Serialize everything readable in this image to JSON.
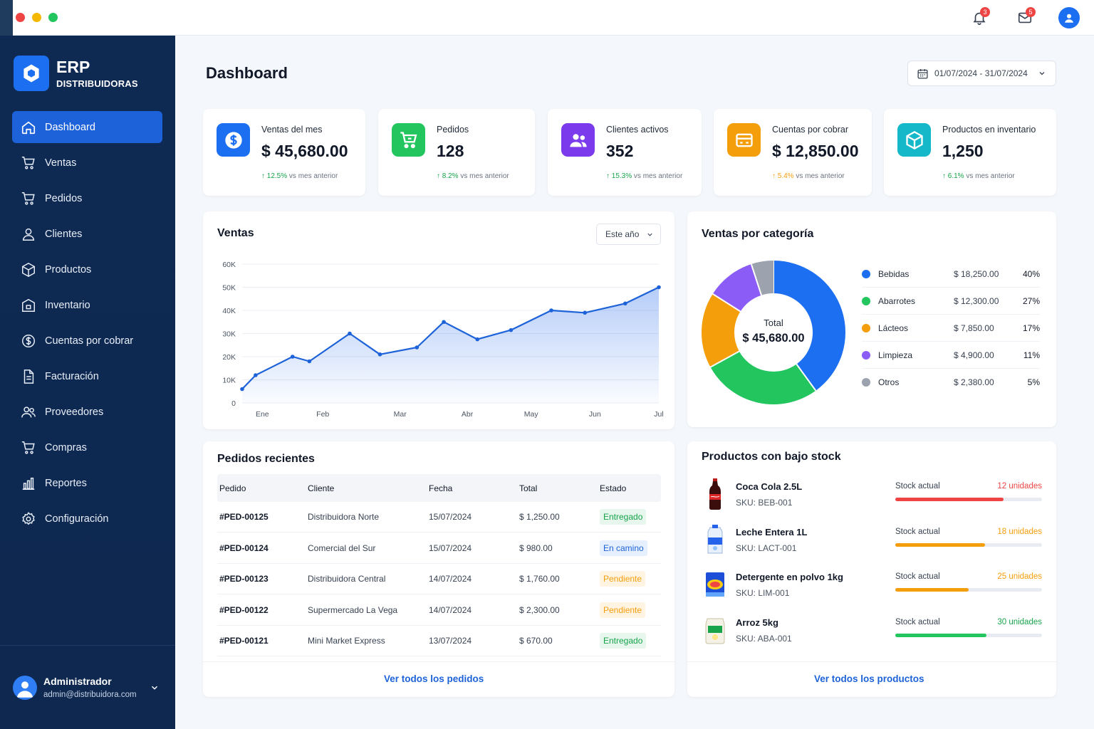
{
  "titlebar": {
    "notifications_badge": "3",
    "messages_badge": "5"
  },
  "brand": {
    "title": "ERP",
    "subtitle": "DISTRIBUIDORAS"
  },
  "sidebar": {
    "items": [
      {
        "label": "Dashboard",
        "icon": "home-icon",
        "active": true
      },
      {
        "label": "Ventas",
        "icon": "cart-icon"
      },
      {
        "label": "Pedidos",
        "icon": "cart-icon"
      },
      {
        "label": "Clientes",
        "icon": "user-icon"
      },
      {
        "label": "Productos",
        "icon": "box-icon"
      },
      {
        "label": "Inventario",
        "icon": "warehouse-icon"
      },
      {
        "label": "Cuentas por cobrar",
        "icon": "dollar-icon"
      },
      {
        "label": "Facturación",
        "icon": "document-icon"
      },
      {
        "label": "Proveedores",
        "icon": "users-icon"
      },
      {
        "label": "Compras",
        "icon": "cart-icon"
      },
      {
        "label": "Reportes",
        "icon": "bar-chart-icon"
      },
      {
        "label": "Configuración",
        "icon": "gear-icon"
      }
    ]
  },
  "user": {
    "name": "Administrador",
    "email": "admin@distribuidora.com"
  },
  "header": {
    "title": "Dashboard",
    "date_range": "01/07/2024 - 31/07/2024"
  },
  "kpis": [
    {
      "label": "Ventas del mes",
      "value": "$ 45,680.00",
      "trend": "12.5%",
      "trend_text": "vs mes anterior",
      "color": "#1d6ff2",
      "trend_color": "#16a34a",
      "icon": "dollar-icon"
    },
    {
      "label": "Pedidos",
      "value": "128",
      "trend": "8.2%",
      "trend_text": "vs mes anterior",
      "color": "#22c55e",
      "trend_color": "#16a34a",
      "icon": "cart-icon"
    },
    {
      "label": "Clientes activos",
      "value": "352",
      "trend": "15.3%",
      "trend_text": "vs mes anterior",
      "color": "#7c3aed",
      "trend_color": "#16a34a",
      "icon": "users-icon"
    },
    {
      "label": "Cuentas por cobrar",
      "value": "$ 12,850.00",
      "trend": "5.4%",
      "trend_text": "vs mes anterior",
      "color": "#f59e0b",
      "trend_color": "#f59e0b",
      "icon": "credit-card-icon"
    },
    {
      "label": "Productos en inventario",
      "value": "1,250",
      "trend": "6.1%",
      "trend_text": "vs mes anterior",
      "color": "#14b8c8",
      "trend_color": "#16a34a",
      "icon": "box-icon"
    }
  ],
  "sales": {
    "title": "Ventas",
    "period": "Este año"
  },
  "chart_data": [
    {
      "type": "area",
      "title": "Ventas",
      "y_ticks": [
        "0",
        "10K",
        "20K",
        "30K",
        "40K",
        "50K",
        "60K"
      ],
      "ylim": [
        0,
        60000
      ],
      "x_labels": [
        "Ene",
        "Feb",
        "Mar",
        "Abr",
        "May",
        "Jun",
        "Jul"
      ],
      "x": [
        0.0,
        0.2,
        0.75,
        1.0,
        1.6,
        2.05,
        2.6,
        3.0,
        3.5,
        4.0,
        4.6,
        5.1,
        5.7,
        6.2
      ],
      "values": [
        6000,
        12000,
        20000,
        18000,
        30000,
        21000,
        24000,
        35000,
        27500,
        31500,
        40000,
        39000,
        43000,
        50000
      ],
      "grid": true,
      "color": "#1d62d8"
    },
    {
      "type": "pie",
      "title": "Ventas por categoría",
      "center_label": "Total",
      "center_value": "$ 45,680.00",
      "slices": [
        {
          "name": "Bebidas",
          "value": "$ 18,250.00",
          "pct": 40,
          "pct_label": "40%",
          "color": "#1d6ff2"
        },
        {
          "name": "Abarrotes",
          "value": "$ 12,300.00",
          "pct": 27,
          "pct_label": "27%",
          "color": "#22c55e"
        },
        {
          "name": "Lácteos",
          "value": "$ 7,850.00",
          "pct": 17,
          "pct_label": "17%",
          "color": "#f59e0b"
        },
        {
          "name": "Limpieza",
          "value": "$ 4,900.00",
          "pct": 11,
          "pct_label": "11%",
          "color": "#8b5cf6"
        },
        {
          "name": "Otros",
          "value": "$ 2,380.00",
          "pct": 5,
          "pct_label": "5%",
          "color": "#9ca3af"
        }
      ]
    }
  ],
  "orders": {
    "title": "Pedidos recientes",
    "columns": [
      "Pedido",
      "Cliente",
      "Fecha",
      "Total",
      "Estado"
    ],
    "rows": [
      {
        "id": "#PED-00125",
        "client": "Distribuidora Norte",
        "date": "15/07/2024",
        "total": "$ 1,250.00",
        "status": "Entregado",
        "status_color": "#16a34a",
        "status_bg": "#e7f7ee"
      },
      {
        "id": "#PED-00124",
        "client": "Comercial del Sur",
        "date": "15/07/2024",
        "total": "$ 980.00",
        "status": "En camino",
        "status_color": "#1d62d8",
        "status_bg": "#e6effd"
      },
      {
        "id": "#PED-00123",
        "client": "Distribuidora Central",
        "date": "14/07/2024",
        "total": "$ 1,760.00",
        "status": "Pendiente",
        "status_color": "#f59e0b",
        "status_bg": "#fff3e2"
      },
      {
        "id": "#PED-00122",
        "client": "Supermercado La Vega",
        "date": "14/07/2024",
        "total": "$ 2,300.00",
        "status": "Pendiente",
        "status_color": "#f59e0b",
        "status_bg": "#fff3e2"
      },
      {
        "id": "#PED-00121",
        "client": "Mini Market Express",
        "date": "13/07/2024",
        "total": "$ 670.00",
        "status": "Entregado",
        "status_color": "#16a34a",
        "status_bg": "#e7f7ee"
      }
    ],
    "view_all": "Ver todos los pedidos"
  },
  "low_stock": {
    "title": "Productos con bajo stock",
    "items": [
      {
        "name": "Coca Cola 2.5L",
        "sku": "SKU: BEB-001",
        "stock_label": "Stock actual",
        "units": "12 unidades",
        "level": 0.74,
        "color": "#ef4444",
        "image": "cola-bottle-image"
      },
      {
        "name": "Leche Entera 1L",
        "sku": "SKU: LACT-001",
        "stock_label": "Stock actual",
        "units": "18 unidades",
        "level": 0.61,
        "color": "#f59e0b",
        "image": "milk-carton-image"
      },
      {
        "name": "Detergente en polvo 1kg",
        "sku": "SKU: LIM-001",
        "stock_label": "Stock actual",
        "units": "25 unidades",
        "level": 0.5,
        "color": "#f59e0b",
        "image": "detergent-box-image"
      },
      {
        "name": "Arroz 5kg",
        "sku": "SKU: ABA-001",
        "stock_label": "Stock actual",
        "units": "30 unidades",
        "level": 0.62,
        "color": "#22c55e",
        "image": "rice-bag-image"
      }
    ],
    "view_all": "Ver todos los productos"
  }
}
